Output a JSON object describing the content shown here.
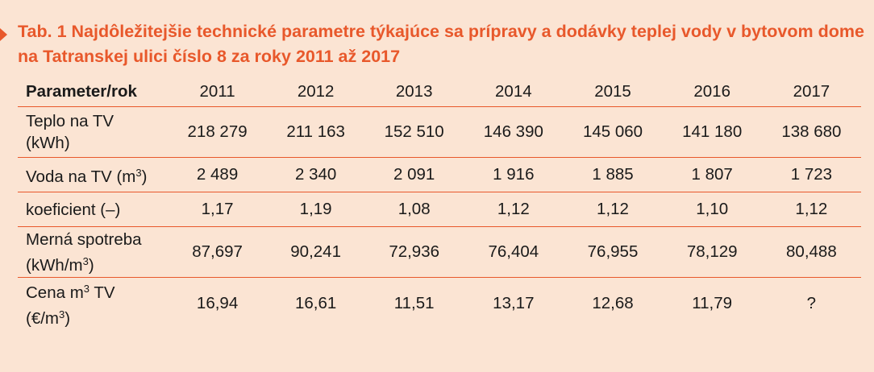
{
  "title": "Tab. 1 Najdôležitejšie technické parametre týkajúce sa prípravy a dodávky teplej vody v bytovom dome na Tatranskej ulici číslo 8 za roky 2011 až 2017",
  "colors": {
    "accent": "#e8582b",
    "background": "#fbe4d3"
  },
  "table": {
    "header": [
      "Parameter/rok",
      "2011",
      "2012",
      "2013",
      "2014",
      "2015",
      "2016",
      "2017"
    ],
    "rows": [
      {
        "label_line1": "Teplo na TV",
        "label_line2": "(kWh)",
        "values": [
          "218 279",
          "211 163",
          "152 510",
          "146 390",
          "145 060",
          "141 180",
          "138 680"
        ]
      },
      {
        "label_pre": "Voda na TV (m",
        "label_sup": "3",
        "label_post": ")",
        "values": [
          "2 489",
          "2 340",
          "2 091",
          "1 916",
          "1 885",
          "1 807",
          "1 723"
        ]
      },
      {
        "label": "koeficient (–)",
        "values": [
          "1,17",
          "1,19",
          "1,08",
          "1,12",
          "1,12",
          "1,10",
          "1,12"
        ]
      },
      {
        "label_line1": "Merná spotreba",
        "label_line2_pre": "(kWh/m",
        "label_line2_sup": "3",
        "label_line2_post": ")",
        "values": [
          "87,697",
          "90,241",
          "72,936",
          "76,404",
          "76,955",
          "78,129",
          "80,488"
        ]
      },
      {
        "label_line1_pre": "Cena m",
        "label_line1_sup": "3",
        "label_line1_post": " TV",
        "label_line2_pre": "(€/m",
        "label_line2_sup": "3",
        "label_line2_post": ")",
        "values": [
          "16,94",
          "16,61",
          "11,51",
          "13,17",
          "12,68",
          "11,79",
          "?"
        ]
      }
    ]
  }
}
